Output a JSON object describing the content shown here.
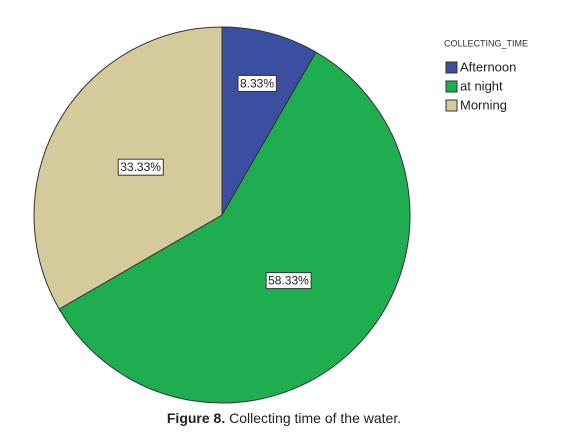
{
  "chart_data": {
    "type": "pie",
    "legend_title": "COLLECTING_TIME",
    "categories": [
      "Afternoon",
      "at night",
      "Morning"
    ],
    "values": [
      8.33,
      58.33,
      33.33
    ],
    "value_labels": [
      "8.33%",
      "58.33%",
      "33.33%"
    ],
    "colors": [
      "#3b4e9f",
      "#1fae4f",
      "#d4ca9c"
    ],
    "legend": "right"
  },
  "caption": {
    "label": "Figure 8.",
    "text": "Collecting time of the water."
  }
}
